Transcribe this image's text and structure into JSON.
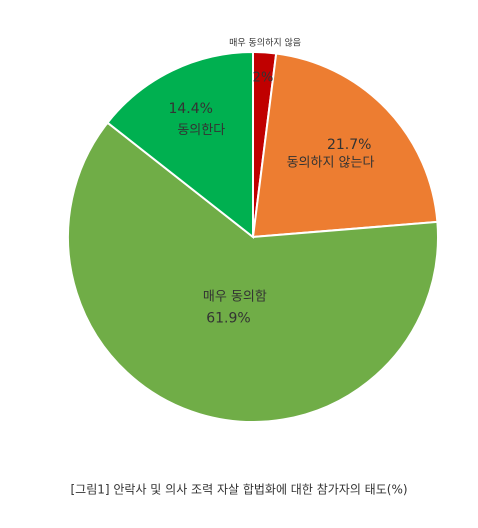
{
  "chart_data": {
    "type": "pie",
    "categories": [
      "매우 동의하지 않음",
      "동의하지 않는다",
      "매우 동의함",
      "동의한다"
    ],
    "values": [
      2,
      21.7,
      61.9,
      14.4
    ],
    "value_labels": [
      "2%",
      "21.7%",
      "61.9%",
      "14.4%"
    ],
    "colors": [
      "#c00000",
      "#ed7d31",
      "#70ad47",
      "#00b050"
    ],
    "caption": "[그림1] 안락사 및 의사 조력 자살 합법화에 대한 참가자의 태도(%)"
  }
}
